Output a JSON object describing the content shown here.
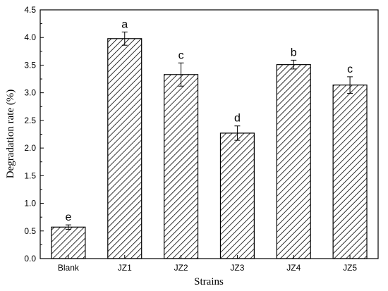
{
  "chart_data": {
    "type": "bar",
    "title": "",
    "xlabel": "Strains",
    "ylabel": "Degradation rate (%)",
    "categories": [
      "Blank",
      "JZ1",
      "JZ2",
      "JZ3",
      "JZ4",
      "JZ5"
    ],
    "values": [
      0.57,
      3.98,
      3.33,
      2.27,
      3.51,
      3.14
    ],
    "errors": [
      0.04,
      0.12,
      0.21,
      0.13,
      0.08,
      0.15
    ],
    "significance_labels": [
      "e",
      "a",
      "c",
      "d",
      "b",
      "c"
    ],
    "ylim": [
      0,
      4.5
    ],
    "yticks": [
      "0.0",
      "0.5",
      "1.0",
      "1.5",
      "2.0",
      "2.5",
      "3.0",
      "3.5",
      "4.0",
      "4.5"
    ],
    "grid": false,
    "legend": "none",
    "bar_fill": "diagonal hatch",
    "colors": {
      "bar_stroke": "#000000",
      "hatch": "#000000",
      "background": "#ffffff"
    }
  }
}
